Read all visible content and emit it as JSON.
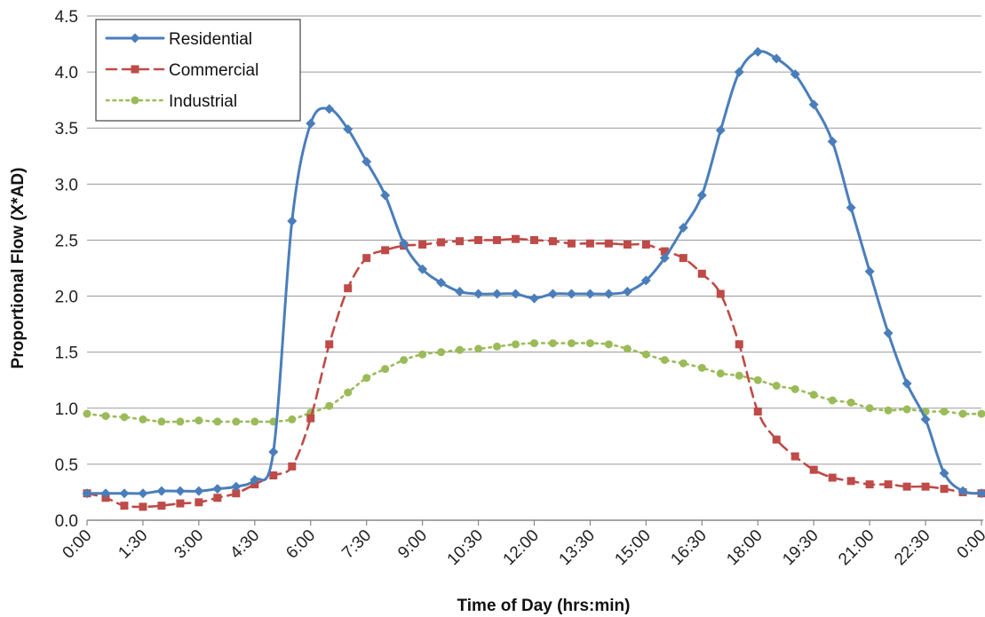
{
  "chart_data": {
    "type": "line",
    "xlabel": "Time of Day (hrs:min)",
    "ylabel": "Proportional Flow (X*AD)",
    "ylim": [
      0,
      4.5
    ],
    "yticks": [
      "0.0",
      "0.5",
      "1.0",
      "1.5",
      "2.0",
      "2.5",
      "3.0",
      "3.5",
      "4.0",
      "4.5"
    ],
    "xticks": [
      "0:00",
      "1:30",
      "3:00",
      "4:30",
      "6:00",
      "7:30",
      "9:00",
      "10:30",
      "12:00",
      "13:30",
      "15:00",
      "16:30",
      "18:00",
      "19:30",
      "21:00",
      "22:30",
      "0:00"
    ],
    "grid": "horizontal",
    "legend_position": "top-left",
    "x_hours": [
      0,
      0.5,
      1,
      1.5,
      2,
      2.5,
      3,
      3.5,
      4,
      4.5,
      5,
      5.5,
      6,
      6.5,
      7,
      7.5,
      8,
      8.5,
      9,
      9.5,
      10,
      10.5,
      11,
      11.5,
      12,
      12.5,
      13,
      13.5,
      14,
      14.5,
      15,
      15.5,
      16,
      16.5,
      17,
      17.5,
      18,
      18.5,
      19,
      19.5,
      20,
      20.5,
      21,
      21.5,
      22,
      22.5,
      23,
      23.5,
      24
    ],
    "series": [
      {
        "name": "Residential",
        "color": "#4a7ebb",
        "style": "solid",
        "marker": "diamond",
        "values": [
          0.24,
          0.24,
          0.24,
          0.24,
          0.26,
          0.26,
          0.26,
          0.28,
          0.3,
          0.36,
          0.61,
          2.67,
          3.54,
          3.67,
          3.49,
          3.2,
          2.9,
          2.47,
          2.24,
          2.12,
          2.04,
          2.02,
          2.02,
          2.02,
          1.98,
          2.02,
          2.02,
          2.02,
          2.02,
          2.04,
          2.14,
          2.34,
          2.61,
          2.9,
          3.48,
          4.0,
          4.18,
          4.12,
          3.98,
          3.71,
          3.38,
          2.79,
          2.22,
          1.67,
          1.22,
          0.9,
          0.42,
          0.26,
          0.24
        ]
      },
      {
        "name": "Commercial",
        "color": "#be4b48",
        "style": "dashed",
        "marker": "square",
        "values": [
          0.24,
          0.2,
          0.13,
          0.12,
          0.13,
          0.15,
          0.16,
          0.2,
          0.24,
          0.32,
          0.4,
          0.48,
          0.91,
          1.57,
          2.07,
          2.34,
          2.41,
          2.45,
          2.46,
          2.48,
          2.49,
          2.5,
          2.5,
          2.51,
          2.5,
          2.49,
          2.47,
          2.47,
          2.47,
          2.46,
          2.46,
          2.4,
          2.34,
          2.2,
          2.02,
          1.57,
          0.97,
          0.72,
          0.57,
          0.45,
          0.38,
          0.35,
          0.32,
          0.32,
          0.3,
          0.3,
          0.28,
          0.25,
          0.24
        ]
      },
      {
        "name": "Industrial",
        "color": "#9bbb59",
        "style": "dotted",
        "marker": "circle",
        "values": [
          0.95,
          0.93,
          0.92,
          0.9,
          0.88,
          0.88,
          0.89,
          0.88,
          0.88,
          0.88,
          0.88,
          0.9,
          0.96,
          1.02,
          1.14,
          1.27,
          1.35,
          1.43,
          1.48,
          1.5,
          1.52,
          1.53,
          1.55,
          1.57,
          1.58,
          1.58,
          1.58,
          1.58,
          1.57,
          1.53,
          1.48,
          1.43,
          1.4,
          1.36,
          1.31,
          1.29,
          1.25,
          1.2,
          1.17,
          1.12,
          1.07,
          1.05,
          1.0,
          0.98,
          0.99,
          0.97,
          0.97,
          0.95,
          0.95
        ]
      }
    ]
  }
}
